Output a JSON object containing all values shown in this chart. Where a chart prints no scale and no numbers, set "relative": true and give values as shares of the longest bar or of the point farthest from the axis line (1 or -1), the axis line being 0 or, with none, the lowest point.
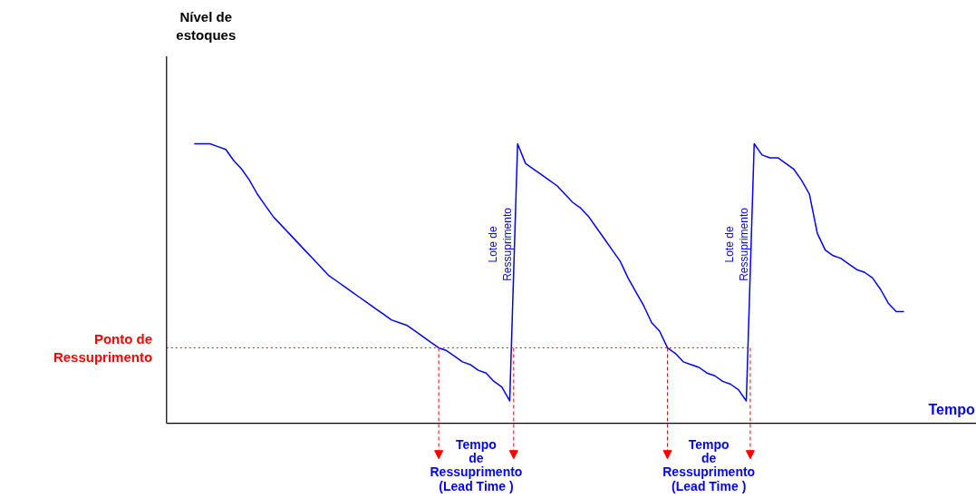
{
  "chart_data": {
    "type": "line",
    "relative": true,
    "xlabel": "Tempo",
    "grid": false,
    "marker": "none",
    "line_style": "solid",
    "categories": [
      null,
      null,
      null,
      null,
      null,
      null,
      null,
      null,
      null,
      null,
      null,
      null,
      null,
      null,
      null,
      null,
      null,
      null,
      null,
      null,
      null,
      null,
      null,
      null,
      null,
      null,
      null,
      null,
      null,
      null,
      null,
      null,
      null,
      null,
      null,
      null,
      null,
      null,
      null,
      null,
      null,
      null,
      null,
      null,
      null,
      null,
      null,
      null,
      null,
      null,
      null,
      null,
      null,
      null,
      null,
      null,
      null,
      null,
      null,
      null,
      null,
      null,
      null,
      null,
      null,
      null,
      null,
      null,
      null,
      null,
      null,
      null,
      null,
      null,
      null,
      null,
      null,
      null,
      null,
      null,
      null,
      null,
      null,
      null,
      null,
      null,
      null,
      null,
      null,
      null,
      null
    ],
    "series": [
      {
        "color": "#0000ff",
        "values": [
          1.0,
          1.0,
          1.0,
          0.99,
          0.98,
          0.94,
          0.91,
          0.87,
          0.82,
          0.78,
          0.74,
          0.71,
          0.68,
          0.65,
          0.62,
          0.59,
          0.56,
          0.53,
          0.51,
          0.49,
          0.47,
          0.45,
          0.43,
          0.41,
          0.39,
          0.37,
          0.36,
          0.35,
          0.33,
          0.31,
          0.29,
          0.27,
          0.26,
          0.24,
          0.22,
          0.21,
          0.19,
          0.18,
          0.15,
          0.13,
          0.08,
          1.0,
          0.93,
          0.91,
          0.89,
          0.87,
          0.85,
          0.82,
          0.79,
          0.77,
          0.74,
          0.7,
          0.66,
          0.62,
          0.58,
          0.52,
          0.47,
          0.42,
          0.36,
          0.33,
          0.27,
          0.25,
          0.22,
          0.21,
          0.2,
          0.18,
          0.17,
          0.15,
          0.14,
          0.12,
          0.08,
          1.0,
          0.96,
          0.95,
          0.95,
          0.93,
          0.91,
          0.87,
          0.82,
          0.68,
          0.62,
          0.6,
          0.59,
          0.57,
          0.55,
          0.54,
          0.52,
          0.48,
          0.43,
          0.4,
          0.4
        ]
      }
    ],
    "ref_lines": [
      {
        "axis": "y",
        "value": 0.27,
        "label": "Ponto de\nRessuprimento",
        "color": "#ff0000",
        "line_style": "dotted"
      }
    ],
    "annotations": [
      "Lote de\nRessuprimento",
      "Lote de\nRessuprimento",
      "Tempo\nde\nRessuprimento\n(Lead Time )",
      "Tempo\nde\nRessuprimento\n(Lead Time )",
      "Nível de\nestoques"
    ]
  }
}
